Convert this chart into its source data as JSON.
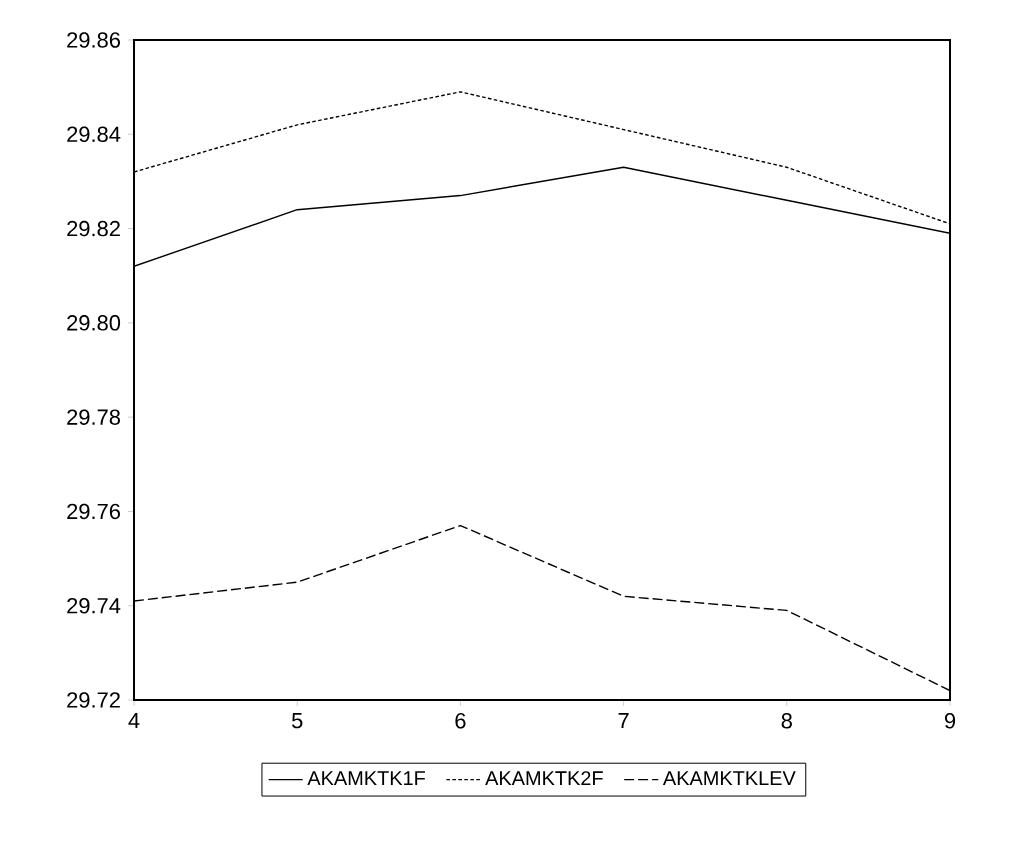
{
  "chart_data": {
    "type": "line",
    "x": [
      4,
      5,
      6,
      7,
      8,
      9
    ],
    "xlim": [
      4,
      9
    ],
    "xticks": [
      4,
      5,
      6,
      7,
      8,
      9
    ],
    "ylim": [
      29.72,
      29.86
    ],
    "yticks": [
      {
        "value": 29.72,
        "label": "29.72"
      },
      {
        "value": 29.74,
        "label": "29.74"
      },
      {
        "value": 29.76,
        "label": "29.76"
      },
      {
        "value": 29.78,
        "label": "29.78"
      },
      {
        "value": 29.8,
        "label": "29.80"
      },
      {
        "value": 29.82,
        "label": "29.82"
      },
      {
        "value": 29.84,
        "label": "29.84"
      },
      {
        "value": 29.86,
        "label": "29.86"
      }
    ],
    "grid": false,
    "legend": "bottom",
    "series": [
      {
        "name": "AKAMKTK1F",
        "color": "#000000",
        "line_style": "solid",
        "values": [
          29.812,
          29.824,
          29.827,
          29.833,
          29.826,
          29.819
        ]
      },
      {
        "name": "AKAMKTK2F",
        "color": "#000000",
        "line_style": "dotted",
        "values": [
          29.832,
          29.842,
          29.849,
          29.841,
          29.833,
          29.821
        ]
      },
      {
        "name": "AKAMKTKLEV",
        "color": "#000000",
        "line_style": "dashed",
        "values": [
          29.741,
          29.745,
          29.757,
          29.742,
          29.739,
          29.722
        ]
      }
    ]
  }
}
